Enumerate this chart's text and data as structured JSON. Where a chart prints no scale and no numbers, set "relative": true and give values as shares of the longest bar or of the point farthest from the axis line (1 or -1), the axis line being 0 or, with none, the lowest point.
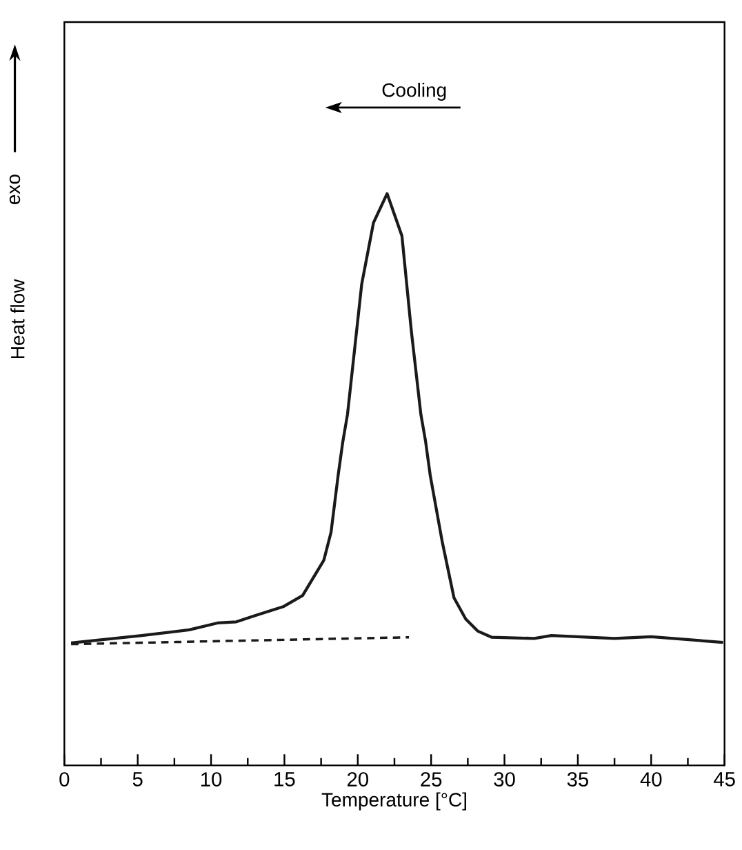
{
  "chart_data": {
    "type": "line",
    "relative": true,
    "xlabel": "Temperature [°C]",
    "ylabel": "Heat flow",
    "annotations": [
      "exo",
      "Cooling"
    ],
    "xlim": [
      0,
      45
    ],
    "xticks": [
      0,
      5,
      10,
      15,
      20,
      25,
      30,
      35,
      40,
      45
    ],
    "tick_labels": "x",
    "marker": "none",
    "series": [
      {
        "color": "#1a1a1a",
        "line_style": "solid",
        "x": [
          0.46,
          5.29,
          8.51,
          10.44,
          11.72,
          13.0,
          14.96,
          16.24,
          17.69,
          18.18,
          18.66,
          18.98,
          19.3,
          20.27,
          21.07,
          22.0,
          23.01,
          23.65,
          24.3,
          24.62,
          24.94,
          25.75,
          26.56,
          27.36,
          28.17,
          29.14,
          32.03,
          33.2,
          37.5,
          40.0,
          44.9
        ],
        "values": [
          0.214,
          0.227,
          0.237,
          0.249,
          0.251,
          0.262,
          0.278,
          0.297,
          0.359,
          0.408,
          0.507,
          0.566,
          0.614,
          0.842,
          0.949,
          1.0,
          0.926,
          0.76,
          0.614,
          0.567,
          0.507,
          0.392,
          0.293,
          0.256,
          0.235,
          0.224,
          0.222,
          0.227,
          0.222,
          0.225,
          0.215
        ]
      },
      {
        "color": "#1a1a1a",
        "line_style": "dashed",
        "x": [
          0.46,
          23.49
        ],
        "values": [
          0.212,
          0.224
        ]
      }
    ]
  }
}
